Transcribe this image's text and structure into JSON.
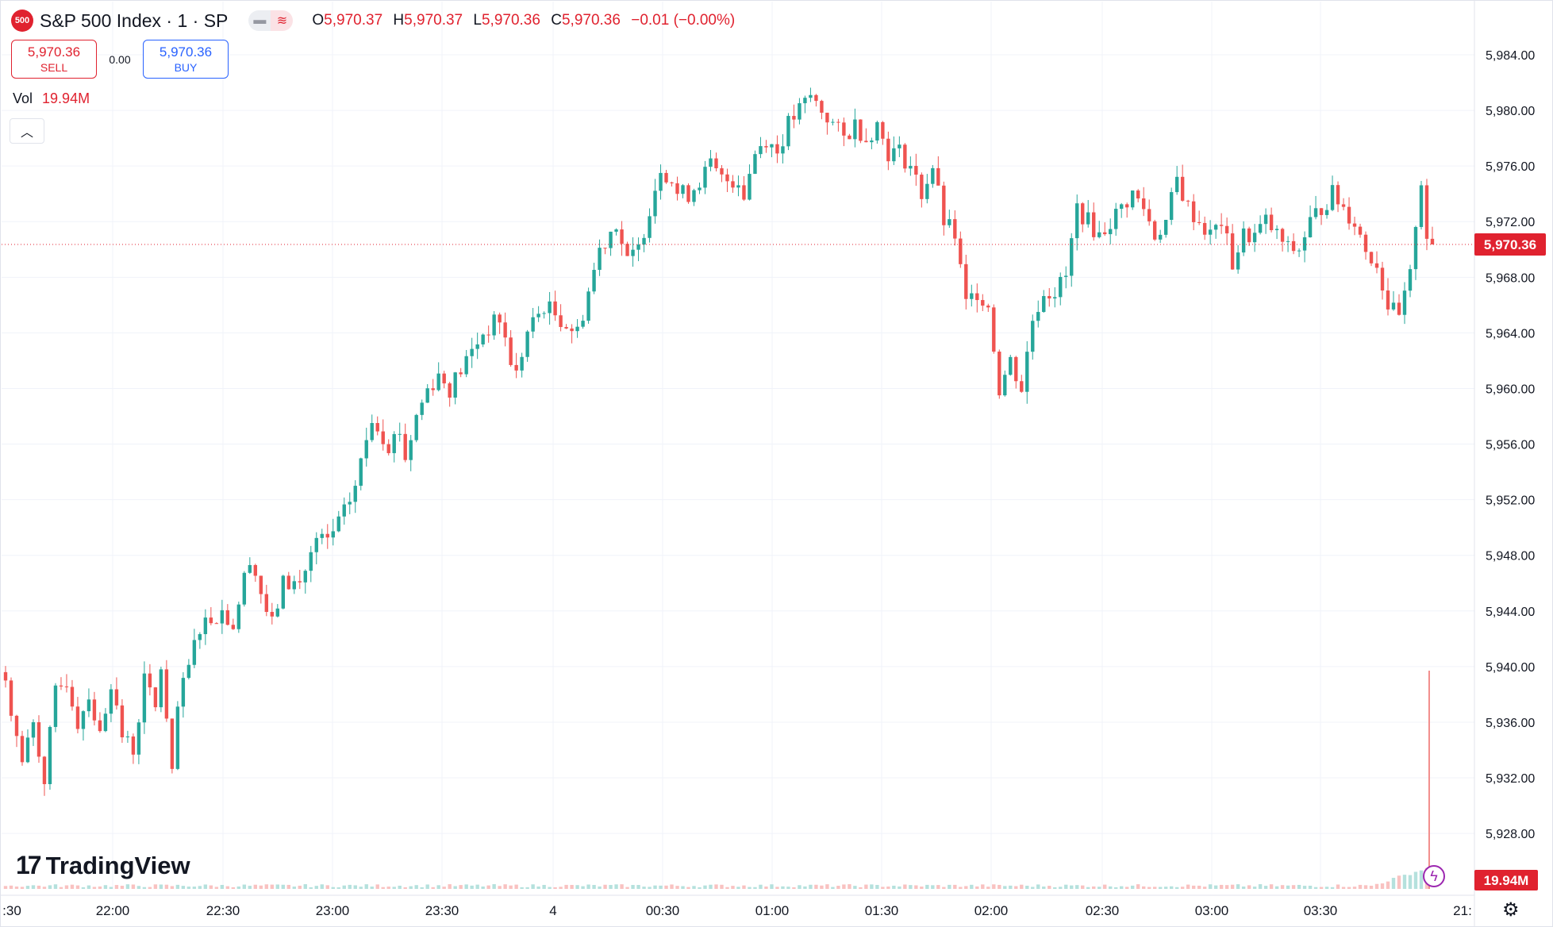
{
  "header": {
    "symbol_badge": "500",
    "title": "S&P 500 Index · 1 · SP",
    "ohlc": {
      "o_label": "O",
      "o": "5,970.37",
      "h_label": "H",
      "h": "5,970.37",
      "l_label": "L",
      "l": "5,970.36",
      "c_label": "C",
      "c": "5,970.36",
      "change": "−0.01 (−0.00%)"
    }
  },
  "trade": {
    "sell_price": "5,970.36",
    "sell_label": "SELL",
    "spread": "0.00",
    "buy_price": "5,970.36",
    "buy_label": "BUY"
  },
  "volume": {
    "label": "Vol",
    "value": "19.94M"
  },
  "collapse_icon": "chevron-up-icon",
  "branding": {
    "logo_text": "TradingView"
  },
  "colors": {
    "up": "#26a69a",
    "down": "#ef5350",
    "price_tag": "#e0222f",
    "grid": "#f0f3fa"
  },
  "chart_data": {
    "type": "candlestick",
    "instrument": "S&P 500 Index",
    "interval": "1",
    "y_range": [
      5926,
      5986
    ],
    "y_ticks": [
      "5,984.00",
      "5,980.00",
      "5,976.00",
      "5,972.00",
      "5,968.00",
      "5,964.00",
      "5,960.00",
      "5,956.00",
      "5,952.00",
      "5,948.00",
      "5,944.00",
      "5,940.00",
      "5,936.00",
      "5,932.00",
      "5,928.00"
    ],
    "y_tick_values": [
      5984,
      5980,
      5976,
      5972,
      5968,
      5964,
      5960,
      5956,
      5952,
      5948,
      5944,
      5940,
      5936,
      5932,
      5928
    ],
    "x_tick_labels": [
      ":30",
      "22:00",
      "22:30",
      "23:00",
      "23:30",
      "4",
      "00:30",
      "01:00",
      "01:30",
      "02:00",
      "02:30",
      "03:00",
      "03:30",
      "21:"
    ],
    "last_price_label": "5,970.36",
    "last_price": 5970.36,
    "volume_label": "19.94M",
    "anchors": [
      [
        0,
        5939
      ],
      [
        3,
        5933
      ],
      [
        5,
        5936
      ],
      [
        7,
        5932
      ],
      [
        9,
        5938
      ],
      [
        11,
        5939
      ],
      [
        13,
        5936
      ],
      [
        15,
        5938
      ],
      [
        17,
        5935
      ],
      [
        19,
        5939
      ],
      [
        21,
        5935
      ],
      [
        23,
        5934
      ],
      [
        25,
        5939
      ],
      [
        27,
        5937
      ],
      [
        28,
        5940
      ],
      [
        30,
        5932
      ],
      [
        31,
        5937
      ],
      [
        35,
        5943
      ],
      [
        39,
        5944
      ],
      [
        41,
        5943
      ],
      [
        44,
        5948
      ],
      [
        47,
        5944
      ],
      [
        48,
        5943
      ],
      [
        50,
        5946
      ],
      [
        53,
        5946
      ],
      [
        54,
        5947
      ],
      [
        56,
        5949
      ],
      [
        58,
        5949
      ],
      [
        61,
        5951
      ],
      [
        63,
        5953
      ],
      [
        66,
        5958
      ],
      [
        69,
        5956
      ],
      [
        71,
        5957
      ],
      [
        72,
        5955
      ],
      [
        74,
        5958
      ],
      [
        76,
        5960
      ],
      [
        78,
        5961
      ],
      [
        80,
        5960
      ],
      [
        83,
        5962
      ],
      [
        86,
        5964
      ],
      [
        89,
        5965
      ],
      [
        91,
        5962
      ],
      [
        92,
        5961
      ],
      [
        94,
        5964
      ],
      [
        97,
        5966
      ],
      [
        100,
        5965
      ],
      [
        103,
        5964
      ],
      [
        105,
        5967
      ],
      [
        107,
        5970
      ],
      [
        110,
        5972
      ],
      [
        112,
        5969
      ],
      [
        114,
        5970
      ],
      [
        116,
        5973
      ],
      [
        118,
        5976
      ],
      [
        120,
        5975
      ],
      [
        121,
        5974
      ],
      [
        123,
        5974
      ],
      [
        125,
        5975
      ],
      [
        127,
        5976
      ],
      [
        129,
        5975
      ],
      [
        131,
        5975
      ],
      [
        132,
        5975
      ],
      [
        133,
        5974
      ],
      [
        135,
        5977
      ],
      [
        137,
        5978
      ],
      [
        139,
        5977
      ],
      [
        141,
        5979
      ],
      [
        143,
        5980
      ],
      [
        145,
        5981
      ],
      [
        147,
        5980
      ],
      [
        149,
        5979
      ],
      [
        151,
        5978
      ],
      [
        153,
        5979
      ],
      [
        155,
        5978
      ],
      [
        157,
        5979
      ],
      [
        159,
        5977
      ],
      [
        161,
        5977
      ],
      [
        163,
        5976
      ],
      [
        165,
        5974
      ],
      [
        167,
        5976
      ],
      [
        169,
        5972
      ],
      [
        171,
        5971
      ],
      [
        173,
        5966
      ],
      [
        175,
        5967
      ],
      [
        177,
        5966
      ],
      [
        179,
        5960
      ],
      [
        181,
        5962
      ],
      [
        183,
        5960
      ],
      [
        185,
        5965
      ],
      [
        187,
        5967
      ],
      [
        189,
        5967
      ],
      [
        191,
        5968
      ],
      [
        193,
        5973
      ],
      [
        195,
        5972
      ],
      [
        197,
        5971
      ],
      [
        199,
        5972
      ],
      [
        201,
        5973
      ],
      [
        203,
        5974
      ],
      [
        205,
        5973
      ],
      [
        207,
        5971
      ],
      [
        209,
        5972
      ],
      [
        211,
        5975
      ],
      [
        213,
        5973
      ],
      [
        215,
        5972
      ],
      [
        217,
        5971
      ],
      [
        219,
        5972
      ],
      [
        221,
        5969
      ],
      [
        223,
        5971
      ],
      [
        225,
        5971
      ],
      [
        227,
        5972
      ],
      [
        229,
        5971
      ],
      [
        231,
        5970
      ],
      [
        233,
        5970
      ],
      [
        235,
        5972
      ],
      [
        237,
        5973
      ],
      [
        239,
        5974
      ],
      [
        241,
        5973
      ],
      [
        243,
        5972
      ],
      [
        245,
        5970
      ],
      [
        247,
        5969
      ],
      [
        249,
        5966
      ],
      [
        251,
        5965
      ],
      [
        253,
        5968
      ],
      [
        254,
        5972
      ],
      [
        255,
        5975
      ],
      [
        256,
        5971
      ],
      [
        257,
        5970.36
      ]
    ],
    "volumes": {
      "baseline": 0.1,
      "final_spike": 19.94
    }
  }
}
